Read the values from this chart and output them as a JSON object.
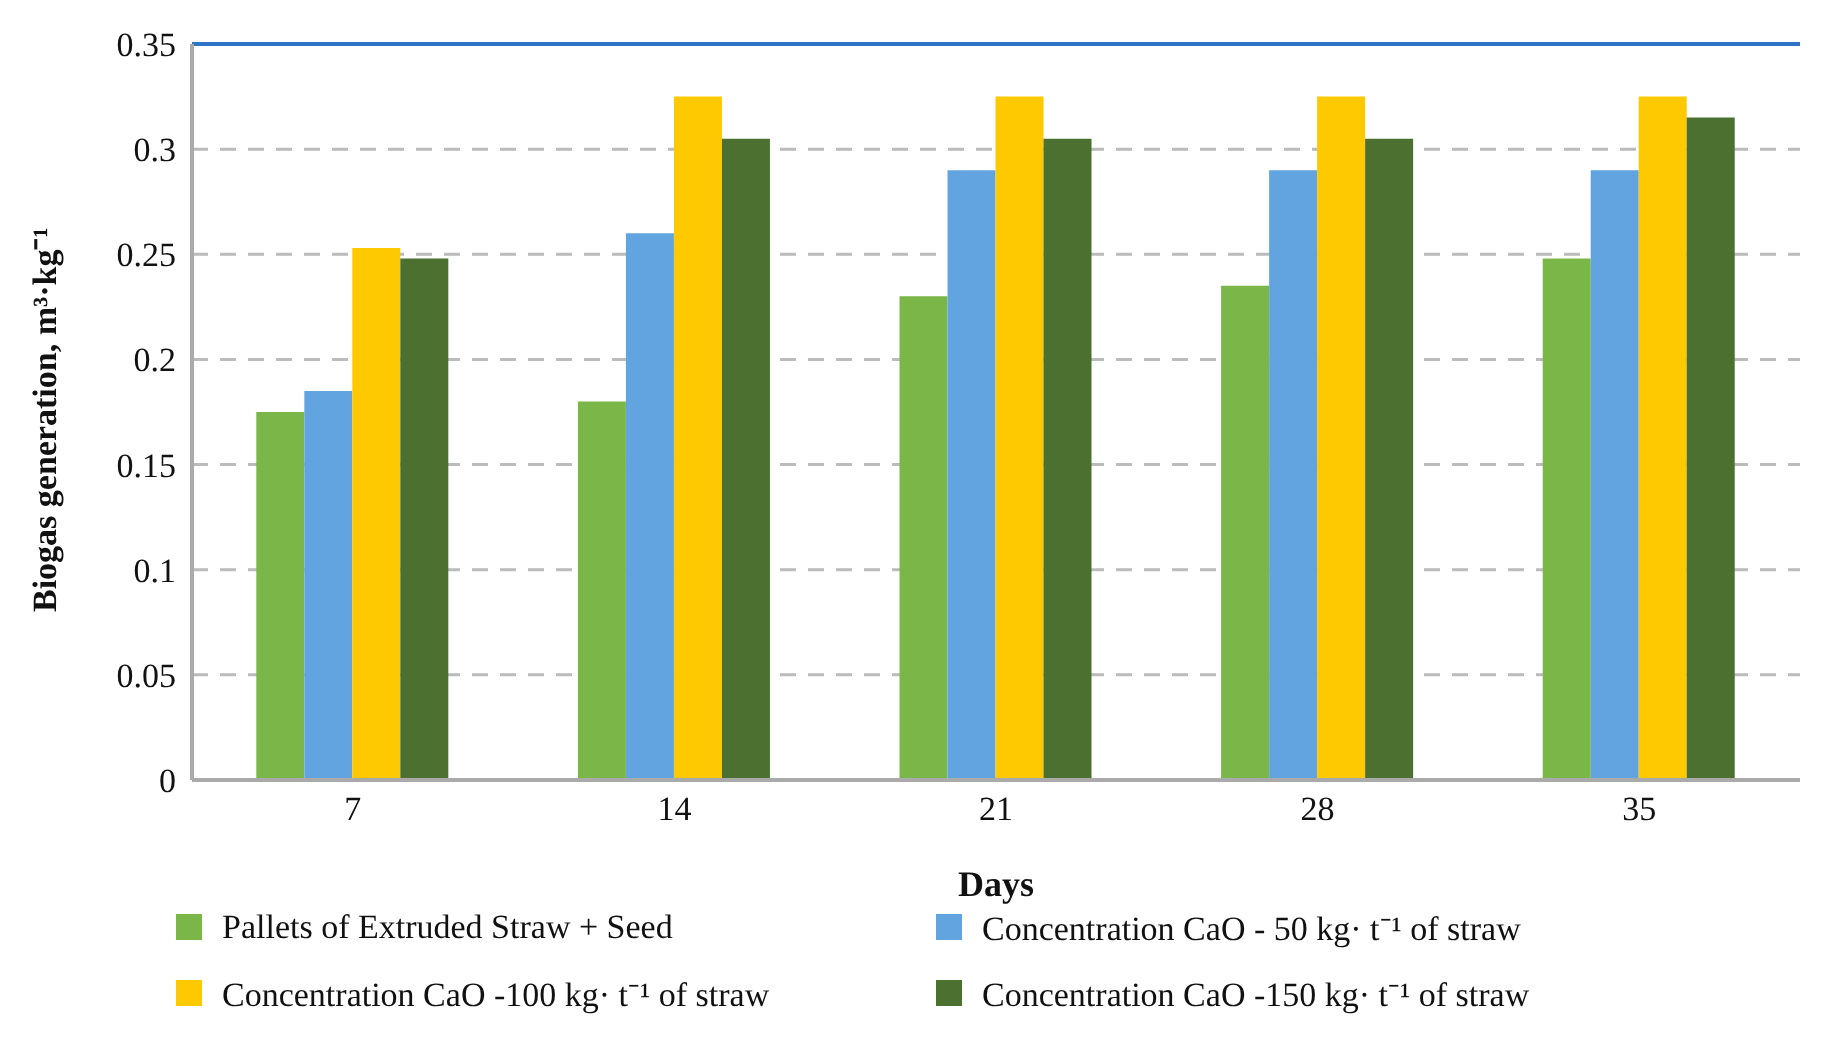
{
  "chart_data": {
    "type": "bar",
    "xlabel": "Days",
    "ylabel": "Biogas generation, m³·kg⁻¹",
    "categories": [
      "7",
      "14",
      "21",
      "28",
      "35"
    ],
    "series": [
      {
        "name": "Pallets of Extruded Straw + Seed",
        "color": "#7ab648",
        "values": [
          0.175,
          0.18,
          0.23,
          0.235,
          0.248
        ]
      },
      {
        "name": "Concentration CaO - 50 kg· t⁻¹ of straw",
        "color": "#62a4df",
        "values": [
          0.185,
          0.26,
          0.29,
          0.29,
          0.29
        ]
      },
      {
        "name": "Concentration CaO -100 kg· t⁻¹ of straw",
        "color": "#ffc900",
        "values": [
          0.253,
          0.325,
          0.325,
          0.325,
          0.325
        ]
      },
      {
        "name": "Concentration CaO -150 kg· t⁻¹ of straw",
        "color": "#4b7030",
        "values": [
          0.248,
          0.305,
          0.305,
          0.305,
          0.315
        ]
      }
    ],
    "ylim": [
      0,
      0.35
    ],
    "yticks": [
      0,
      0.05,
      0.1,
      0.15,
      0.2,
      0.25,
      0.3,
      0.35
    ],
    "grid": "y",
    "legend": "bottom"
  }
}
